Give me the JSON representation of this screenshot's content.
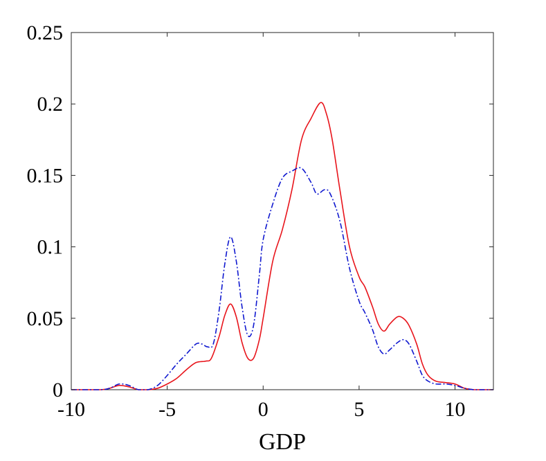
{
  "chart_data": {
    "type": "line",
    "title": "",
    "xlabel": "GDP",
    "ylabel": "",
    "xlim": [
      -10,
      12
    ],
    "ylim": [
      0,
      0.25
    ],
    "xticks": [
      -10,
      -5,
      0,
      5,
      10
    ],
    "xtick_labels": [
      "-10",
      "-5",
      "0",
      "5",
      "10"
    ],
    "yticks": [
      0,
      0.05,
      0.1,
      0.15,
      0.2,
      0.25
    ],
    "ytick_labels": [
      "0",
      "0.05",
      "0.1",
      "0.15",
      "0.2",
      "0.25"
    ],
    "grid": false,
    "legend": "none",
    "series": [
      {
        "color": "#e8141b",
        "style": "solid",
        "x": [
          -10,
          -8.5,
          -8,
          -7.5,
          -7,
          -6.5,
          -6,
          -5.5,
          -5,
          -4.5,
          -4,
          -3.5,
          -3,
          -2.7,
          -2.3,
          -2,
          -1.7,
          -1.4,
          -1.1,
          -0.8,
          -0.5,
          -0.2,
          0,
          0.5,
          1,
          1.5,
          2,
          2.5,
          3,
          3.3,
          3.6,
          4,
          4.5,
          5,
          5.3,
          5.7,
          6,
          6.3,
          6.6,
          7,
          7.3,
          7.6,
          8,
          8.3,
          8.6,
          9,
          9.5,
          10,
          10.5,
          11,
          11.5,
          12
        ],
        "y": [
          0,
          0,
          0.001,
          0.003,
          0.002,
          0,
          0,
          0.001,
          0.004,
          0.008,
          0.014,
          0.019,
          0.02,
          0.022,
          0.037,
          0.052,
          0.06,
          0.051,
          0.033,
          0.022,
          0.022,
          0.035,
          0.05,
          0.09,
          0.112,
          0.14,
          0.175,
          0.19,
          0.201,
          0.193,
          0.175,
          0.14,
          0.1,
          0.079,
          0.072,
          0.058,
          0.046,
          0.041,
          0.046,
          0.051,
          0.05,
          0.045,
          0.032,
          0.018,
          0.01,
          0.006,
          0.005,
          0.004,
          0.001,
          0,
          0,
          0
        ]
      },
      {
        "color": "#0f18cf",
        "style": "dashdot",
        "x": [
          -10,
          -8.5,
          -8,
          -7.5,
          -7,
          -6.5,
          -6,
          -5.5,
          -5,
          -4.5,
          -4,
          -3.5,
          -3.2,
          -2.9,
          -2.6,
          -2.3,
          -2,
          -1.7,
          -1.4,
          -1.1,
          -0.8,
          -0.5,
          -0.2,
          0,
          0.5,
          1,
          1.5,
          2,
          2.5,
          2.8,
          3.2,
          3.5,
          4,
          4.5,
          5,
          5.3,
          5.7,
          6,
          6.3,
          6.6,
          7,
          7.3,
          7.6,
          8,
          8.3,
          8.6,
          9,
          9.5,
          10,
          10.5,
          11,
          11.5,
          12
        ],
        "y": [
          0,
          0,
          0.001,
          0.004,
          0.003,
          0,
          0,
          0.003,
          0.01,
          0.018,
          0.025,
          0.032,
          0.032,
          0.03,
          0.032,
          0.055,
          0.088,
          0.107,
          0.09,
          0.058,
          0.038,
          0.045,
          0.08,
          0.105,
          0.13,
          0.148,
          0.153,
          0.155,
          0.145,
          0.137,
          0.14,
          0.137,
          0.118,
          0.085,
          0.062,
          0.054,
          0.042,
          0.03,
          0.025,
          0.028,
          0.033,
          0.035,
          0.032,
          0.02,
          0.01,
          0.006,
          0.004,
          0.004,
          0.003,
          0.001,
          0,
          0,
          0
        ]
      }
    ]
  }
}
